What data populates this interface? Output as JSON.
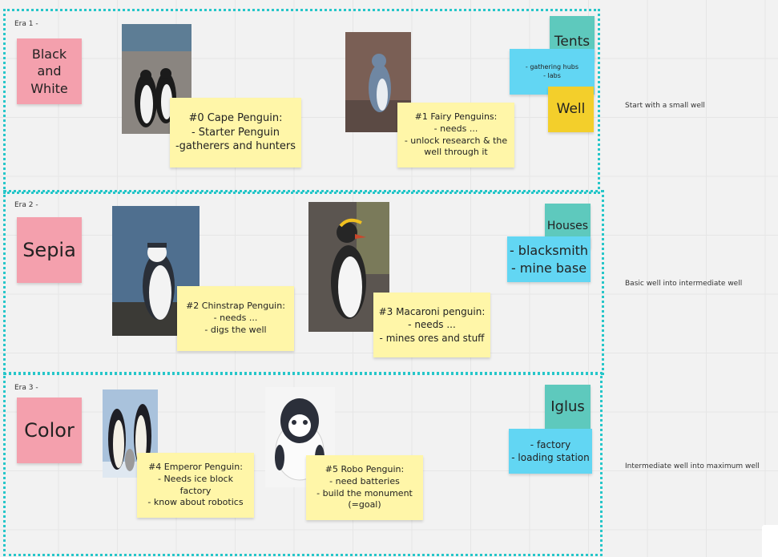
{
  "eras": [
    {
      "label": "Era 1 -",
      "title": "Black\nand\nWhite",
      "note": "Start with a small well",
      "cards": [
        {
          "text": "#0 Cape Penguin:\n- Starter Penguin\n-gatherers and hunters"
        },
        {
          "text": "#1 Fairy Penguins:\n- needs ...\n- unlock research & the\nwell through it"
        }
      ],
      "buildings": [
        {
          "title": "Tents",
          "detail": "- gathering hubs\n- labs"
        },
        {
          "title": "Well"
        }
      ]
    },
    {
      "label": "Era 2 -",
      "title": "Sepia",
      "note": "Basic well into intermediate well",
      "cards": [
        {
          "text": "#2 Chinstrap Penguin:\n- needs ...\n- digs the well"
        },
        {
          "text": "#3 Macaroni penguin:\n- needs ...\n- mines ores and stuff"
        }
      ],
      "buildings": [
        {
          "title": "Houses",
          "detail": "- blacksmith\n- mine base"
        }
      ]
    },
    {
      "label": "Era 3 -",
      "title": "Color",
      "note": "Intermediate well into maximum well",
      "cards": [
        {
          "text": "#4 Emperor Penguin:\n- Needs ice block\nfactory\n- know about robotics"
        },
        {
          "text": "#5 Robo Penguin:\n- need batteries\n- build the monument\n(=goal)"
        }
      ],
      "buildings": [
        {
          "title": "Iglus",
          "detail": "- factory\n- loading station"
        }
      ]
    }
  ],
  "colors": {
    "frame": "#26c6c9",
    "pink": "#f4a0ad",
    "yellow": "#fff6a8",
    "blue": "#62d6f3",
    "teal": "#5ec9bd",
    "gold": "#f3cf2b"
  }
}
